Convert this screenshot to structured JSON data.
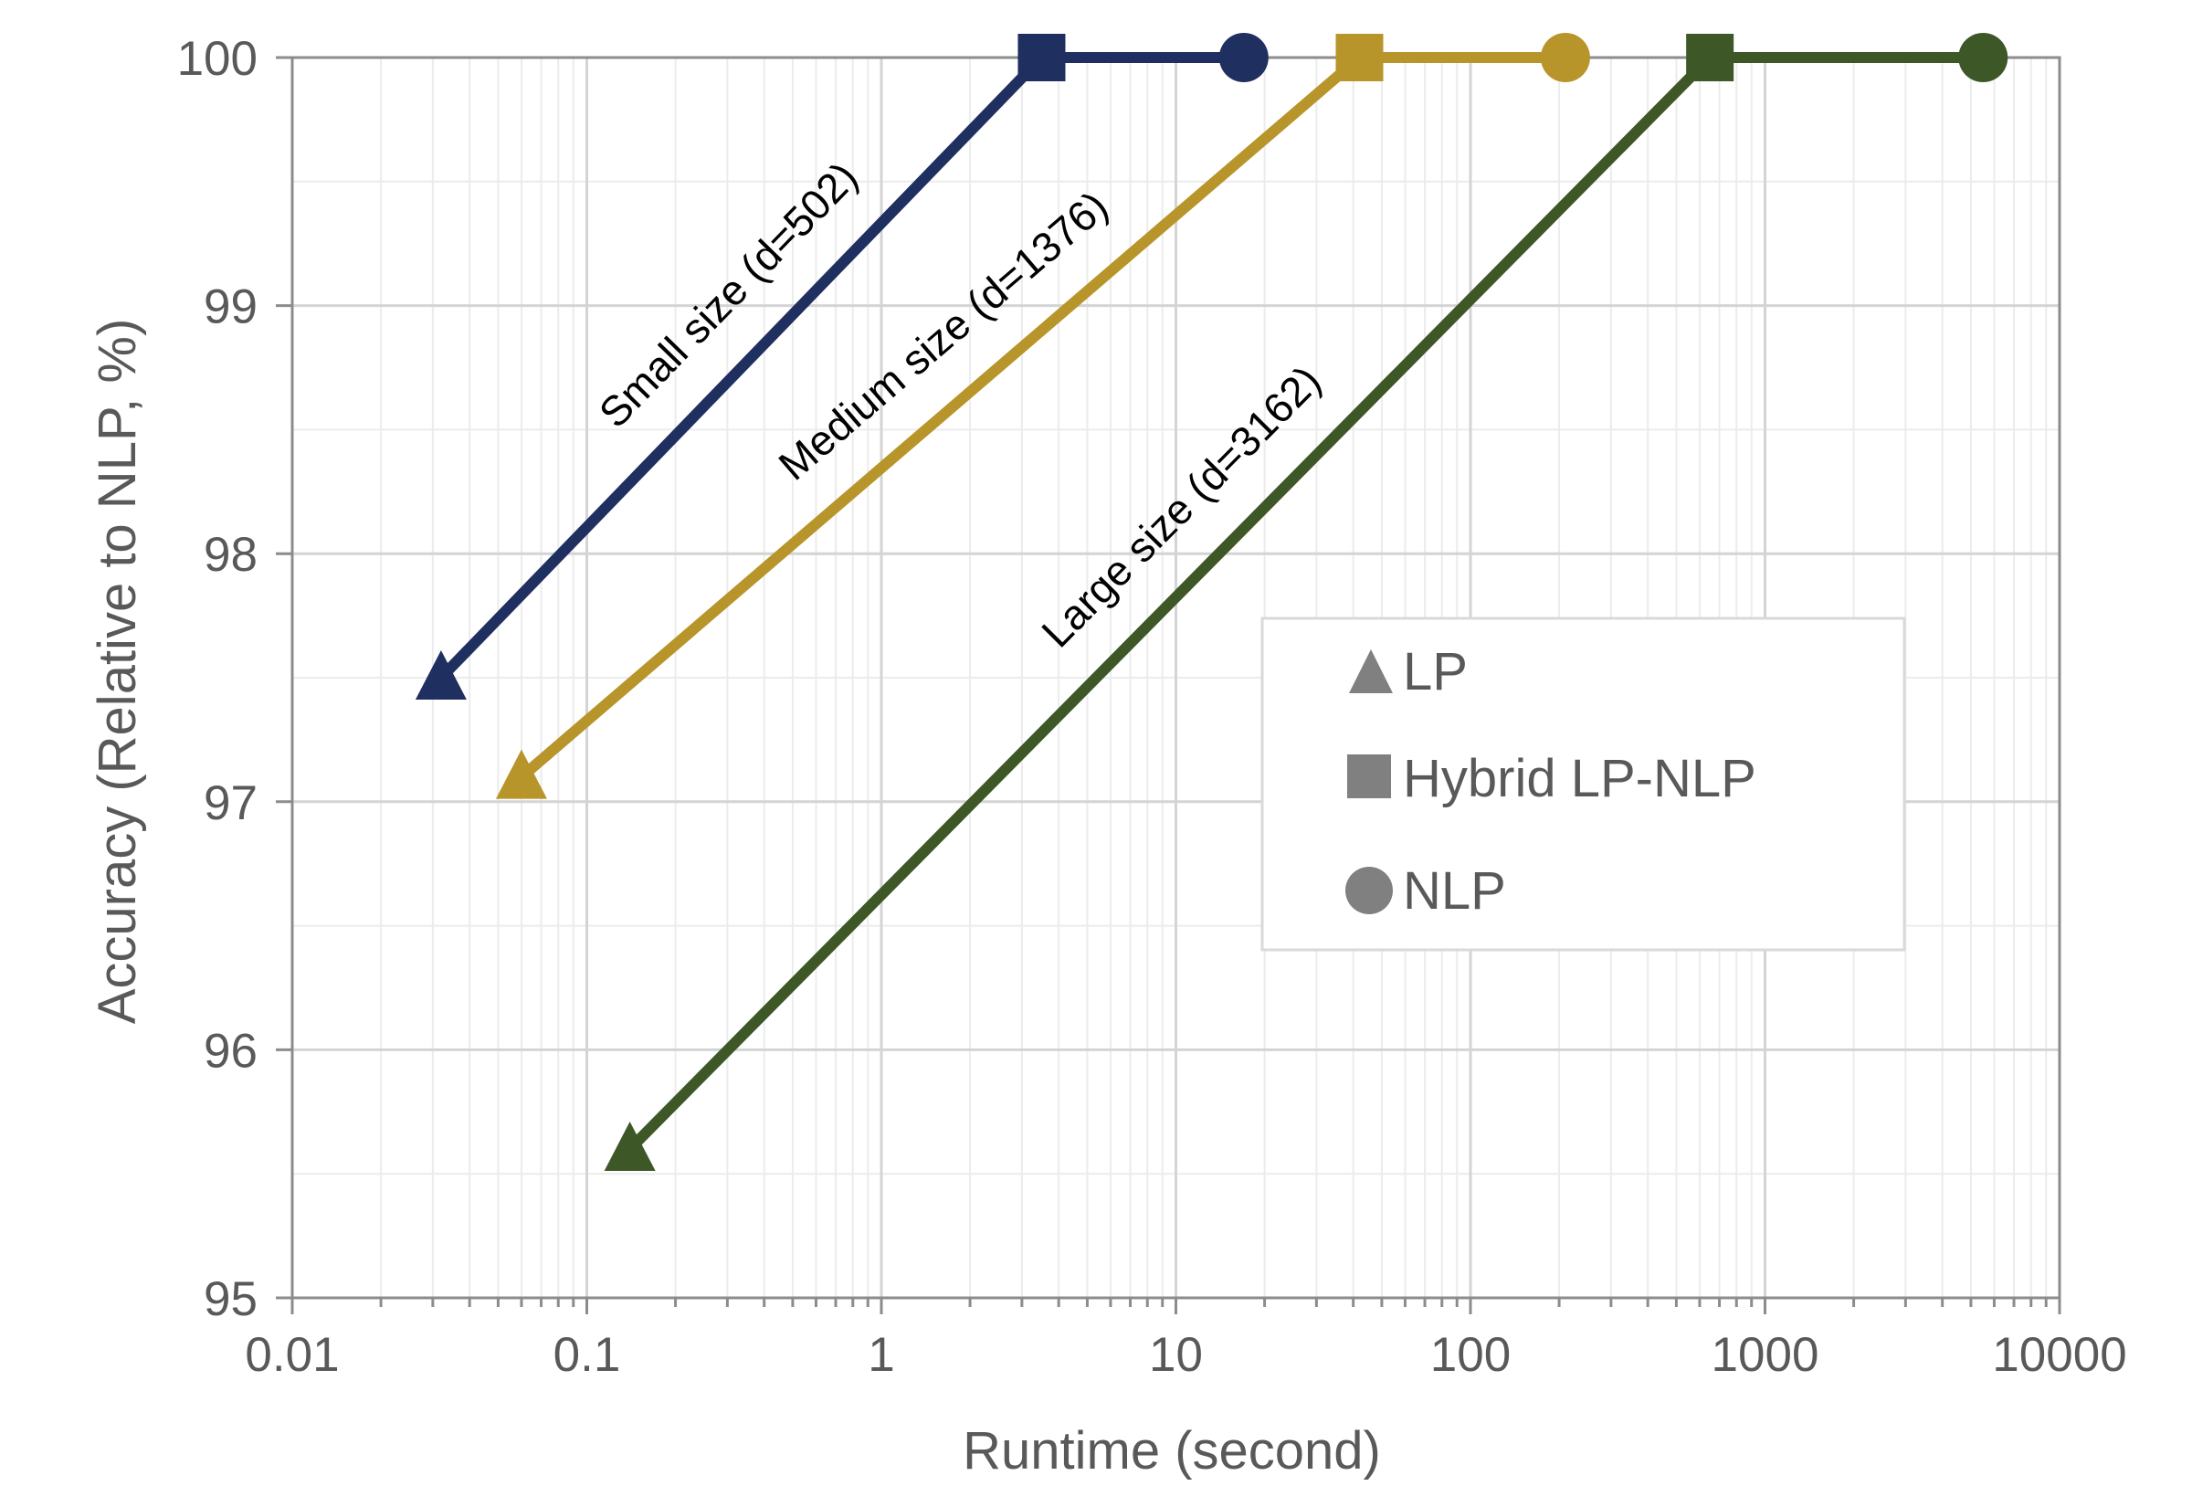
{
  "chart_data": {
    "type": "line",
    "title": "",
    "xlabel": "Runtime (second)",
    "ylabel": "Accuracy (Relative to NLP, %)",
    "x_scale": "log",
    "xlim": [
      0.01,
      10000
    ],
    "ylim": [
      95,
      100
    ],
    "x_ticks": [
      "0.01",
      "0.1",
      "1",
      "10",
      "100",
      "1000",
      "10000"
    ],
    "y_ticks": [
      "95",
      "96",
      "97",
      "98",
      "99",
      "100"
    ],
    "grid": true,
    "series": [
      {
        "name": "Small size (d=502)",
        "color": "#1F2F5F",
        "points": [
          {
            "method": "LP",
            "x": 0.032,
            "y": 97.5
          },
          {
            "method": "Hybrid LP-NLP",
            "x": 3.5,
            "y": 100
          },
          {
            "method": "NLP",
            "x": 17,
            "y": 100
          }
        ]
      },
      {
        "name": "Medium size (d=1376)",
        "color": "#B8952A",
        "points": [
          {
            "method": "LP",
            "x": 0.06,
            "y": 97.1
          },
          {
            "method": "Hybrid LP-NLP",
            "x": 42,
            "y": 100
          },
          {
            "method": "NLP",
            "x": 210,
            "y": 100
          }
        ]
      },
      {
        "name": "Large size (d=3162)",
        "color": "#3D5727",
        "points": [
          {
            "method": "LP",
            "x": 0.14,
            "y": 95.6
          },
          {
            "method": "Hybrid LP-NLP",
            "x": 650,
            "y": 100
          },
          {
            "method": "NLP",
            "x": 5500,
            "y": 100
          }
        ]
      }
    ],
    "legend": {
      "placement": "center-right",
      "entries": [
        {
          "label": "LP",
          "marker": "triangle"
        },
        {
          "label": "Hybrid LP-NLP",
          "marker": "square"
        },
        {
          "label": "NLP",
          "marker": "circle"
        }
      ],
      "marker_color": "#808080"
    }
  }
}
